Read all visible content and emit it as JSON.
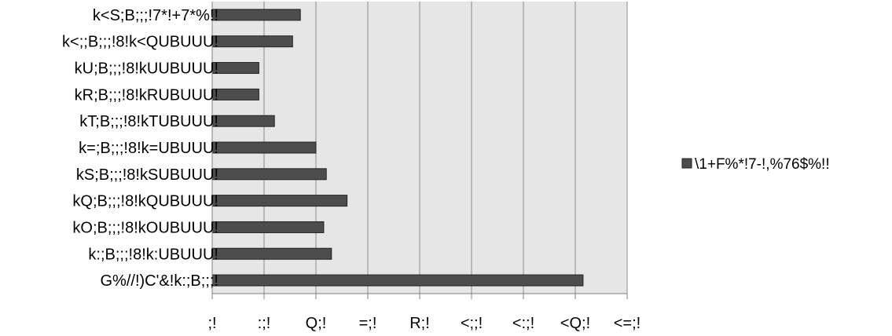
{
  "chart_data": {
    "type": "bar",
    "orientation": "horizontal",
    "categories": [
      "k<S;B;;;!7*!+7*%!!",
      "k<;;B;;;!8!k<QUBUUU!",
      "kU;B;;;!8!kUUBUUU!",
      "kR;B;;;!8!kRUBUUU!",
      "kT;B;;;!8!kTUBUUU!",
      "k=;B;;;!8!k=UBUUU!",
      "kS;B;;;!8!kSUBUUU!",
      "kQ;B;;;!8!kQUBUUU!",
      "kO;B;;;!8!kOUBUUU!",
      "k:;B;;;!8!k:UBUUU!",
      "G%//!)C'&!k:;B;;;!"
    ],
    "series": [
      {
        "name": "\\1+F%*!7-!,%76$%!!",
        "color": "#4d4d4d",
        "values": [
          17,
          15.5,
          9,
          9,
          12,
          20,
          22,
          26,
          21.5,
          23,
          71.5
        ]
      }
    ],
    "xlim": [
      0,
      80
    ],
    "xticks": [
      0,
      10,
      20,
      30,
      40,
      50,
      60,
      70,
      80
    ],
    "xtick_labels": [
      ";!",
      ":;!",
      "Q;!",
      "=;!",
      "R;!",
      "<;;!",
      "<:;!",
      "<Q;!",
      "<=;!"
    ],
    "grid": "vertical",
    "legend_position": "right",
    "plot_background": "#e6e6e6"
  }
}
